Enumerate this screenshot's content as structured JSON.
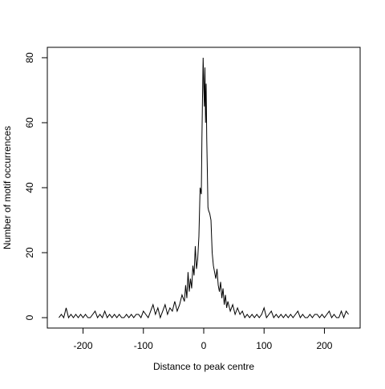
{
  "chart_data": {
    "type": "line",
    "xlabel": "Distance to peak centre",
    "ylabel": "Number of motif occurrences",
    "x": [
      -240,
      -236,
      -232,
      -228,
      -224,
      -220,
      -216,
      -212,
      -208,
      -204,
      -200,
      -196,
      -192,
      -188,
      -184,
      -180,
      -176,
      -172,
      -168,
      -164,
      -160,
      -156,
      -152,
      -148,
      -144,
      -140,
      -136,
      -132,
      -128,
      -124,
      -120,
      -116,
      -112,
      -108,
      -104,
      -100,
      -96,
      -92,
      -88,
      -84,
      -80,
      -76,
      -72,
      -68,
      -64,
      -60,
      -56,
      -52,
      -48,
      -44,
      -40,
      -36,
      -32,
      -30,
      -28,
      -26,
      -24,
      -22,
      -20,
      -18,
      -16,
      -14,
      -12,
      -10,
      -8,
      -6,
      -4,
      -3,
      -2,
      -1,
      0,
      1,
      2,
      3,
      4,
      5,
      6,
      7,
      8,
      10,
      12,
      14,
      16,
      18,
      20,
      22,
      24,
      26,
      28,
      30,
      32,
      34,
      36,
      38,
      40,
      44,
      48,
      52,
      56,
      60,
      64,
      68,
      72,
      76,
      80,
      84,
      88,
      92,
      96,
      100,
      104,
      108,
      112,
      116,
      120,
      124,
      128,
      132,
      136,
      140,
      144,
      148,
      152,
      156,
      160,
      164,
      168,
      172,
      176,
      180,
      184,
      188,
      192,
      196,
      200,
      204,
      208,
      212,
      216,
      220,
      224,
      228,
      232,
      236,
      240
    ],
    "values": [
      0,
      1,
      0,
      3,
      0,
      1,
      0,
      1,
      0,
      1,
      0,
      1,
      0,
      0,
      1,
      2,
      0,
      1,
      0,
      2,
      0,
      1,
      0,
      1,
      0,
      1,
      0,
      0,
      1,
      0,
      1,
      0,
      1,
      1,
      0,
      2,
      1,
      0,
      2,
      4,
      1,
      3,
      0,
      2,
      4,
      1,
      3,
      2,
      5,
      2,
      4,
      7,
      5,
      10,
      6,
      14,
      8,
      12,
      9,
      16,
      13,
      22,
      15,
      18,
      25,
      40,
      38,
      55,
      68,
      80,
      72,
      65,
      77,
      60,
      72,
      55,
      45,
      34,
      33,
      32,
      30,
      20,
      16,
      14,
      12,
      15,
      10,
      8,
      11,
      6,
      9,
      4,
      7,
      3,
      5,
      2,
      4,
      1,
      3,
      1,
      2,
      0,
      1,
      0,
      1,
      0,
      1,
      0,
      1,
      3,
      0,
      1,
      2,
      0,
      1,
      0,
      1,
      0,
      1,
      0,
      1,
      0,
      1,
      2,
      0,
      1,
      0,
      0,
      1,
      0,
      1,
      1,
      0,
      1,
      0,
      1,
      2,
      0,
      1,
      0,
      0,
      2,
      0,
      2,
      1
    ],
    "color": "#000000",
    "xlim": [
      -259.2,
      259.2
    ],
    "xticks": [
      -200,
      -100,
      0,
      100,
      200
    ],
    "ylim": [
      -3.2,
      83.2
    ],
    "yticks": [
      0,
      20,
      40,
      60,
      80
    ]
  }
}
